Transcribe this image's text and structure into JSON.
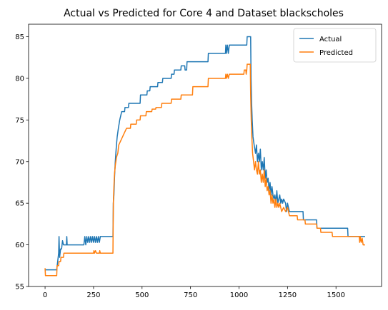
{
  "chart_data": {
    "type": "line",
    "title": "Actual vs Predicted for Core 4 and Dataset blackscholes",
    "xlabel": "",
    "ylabel": "",
    "xlim": [
      -85,
      1735
    ],
    "ylim": [
      55.0,
      86.5
    ],
    "xticks": [
      0,
      250,
      500,
      750,
      1000,
      1250,
      1500
    ],
    "yticks": [
      55,
      60,
      65,
      70,
      75,
      80,
      85
    ],
    "grid": false,
    "legend": "top-right",
    "series": [
      {
        "name": "Actual",
        "color": "#1f77b4",
        "points": [
          [
            0,
            57
          ],
          [
            60,
            57
          ],
          [
            65,
            58
          ],
          [
            70,
            59
          ],
          [
            72,
            61
          ],
          [
            75,
            58.5
          ],
          [
            80,
            59.5
          ],
          [
            85,
            59.5
          ],
          [
            90,
            60.5
          ],
          [
            95,
            60
          ],
          [
            110,
            60
          ],
          [
            112,
            61
          ],
          [
            114,
            60
          ],
          [
            200,
            60
          ],
          [
            205,
            61
          ],
          [
            210,
            60
          ],
          [
            215,
            61
          ],
          [
            220,
            60.3
          ],
          [
            225,
            61
          ],
          [
            230,
            60.3
          ],
          [
            235,
            61
          ],
          [
            240,
            60.3
          ],
          [
            245,
            61
          ],
          [
            250,
            60.3
          ],
          [
            255,
            61
          ],
          [
            260,
            60.3
          ],
          [
            265,
            61
          ],
          [
            270,
            60.3
          ],
          [
            275,
            61
          ],
          [
            280,
            60.3
          ],
          [
            285,
            61
          ],
          [
            290,
            61
          ],
          [
            350,
            61
          ],
          [
            352,
            65
          ],
          [
            355,
            66
          ],
          [
            358,
            68
          ],
          [
            362,
            70
          ],
          [
            365,
            71
          ],
          [
            368,
            72
          ],
          [
            372,
            73
          ],
          [
            378,
            74
          ],
          [
            385,
            75
          ],
          [
            395,
            76
          ],
          [
            410,
            76
          ],
          [
            412,
            76.5
          ],
          [
            430,
            76.5
          ],
          [
            432,
            77
          ],
          [
            460,
            77
          ],
          [
            462,
            77
          ],
          [
            490,
            77
          ],
          [
            492,
            78
          ],
          [
            525,
            78
          ],
          [
            527,
            78.5
          ],
          [
            540,
            78.5
          ],
          [
            542,
            79
          ],
          [
            580,
            79
          ],
          [
            582,
            79.5
          ],
          [
            605,
            79.5
          ],
          [
            607,
            80
          ],
          [
            650,
            80
          ],
          [
            652,
            80.5
          ],
          [
            665,
            80.5
          ],
          [
            667,
            81
          ],
          [
            700,
            81
          ],
          [
            702,
            81.5
          ],
          [
            720,
            81.5
          ],
          [
            722,
            81
          ],
          [
            730,
            81
          ],
          [
            732,
            82
          ],
          [
            760,
            82
          ],
          [
            762,
            82
          ],
          [
            840,
            82
          ],
          [
            842,
            83
          ],
          [
            930,
            83
          ],
          [
            932,
            84
          ],
          [
            935,
            83
          ],
          [
            940,
            84
          ],
          [
            945,
            83
          ],
          [
            950,
            84
          ],
          [
            952,
            84
          ],
          [
            1040,
            84
          ],
          [
            1042,
            85
          ],
          [
            1060,
            85
          ],
          [
            1062,
            80
          ],
          [
            1065,
            77
          ],
          [
            1068,
            75
          ],
          [
            1072,
            73
          ],
          [
            1078,
            72
          ],
          [
            1085,
            71
          ],
          [
            1090,
            72
          ],
          [
            1095,
            70
          ],
          [
            1100,
            71
          ],
          [
            1105,
            70
          ],
          [
            1110,
            71.5
          ],
          [
            1115,
            69
          ],
          [
            1120,
            70
          ],
          [
            1125,
            69
          ],
          [
            1130,
            70.5
          ],
          [
            1135,
            68
          ],
          [
            1140,
            69
          ],
          [
            1145,
            67.5
          ],
          [
            1150,
            68
          ],
          [
            1155,
            66.5
          ],
          [
            1160,
            67.5
          ],
          [
            1165,
            66
          ],
          [
            1170,
            67
          ],
          [
            1175,
            66
          ],
          [
            1180,
            65.5
          ],
          [
            1185,
            66
          ],
          [
            1190,
            65
          ],
          [
            1195,
            66.5
          ],
          [
            1200,
            65
          ],
          [
            1205,
            65.5
          ],
          [
            1210,
            66
          ],
          [
            1215,
            65
          ],
          [
            1220,
            65.5
          ],
          [
            1225,
            65
          ],
          [
            1230,
            65.5
          ],
          [
            1240,
            65
          ],
          [
            1245,
            64
          ],
          [
            1250,
            65
          ],
          [
            1260,
            64
          ],
          [
            1300,
            64
          ],
          [
            1330,
            64
          ],
          [
            1332,
            63
          ],
          [
            1400,
            63
          ],
          [
            1402,
            62
          ],
          [
            1560,
            62
          ],
          [
            1562,
            61
          ],
          [
            1650,
            61
          ]
        ]
      },
      {
        "name": "Predicted",
        "color": "#ff7f0e",
        "points": [
          [
            0,
            57.2
          ],
          [
            2,
            56.3
          ],
          [
            60,
            56.3
          ],
          [
            62,
            57.5
          ],
          [
            70,
            57.5
          ],
          [
            72,
            58
          ],
          [
            80,
            58
          ],
          [
            82,
            58.5
          ],
          [
            95,
            58.5
          ],
          [
            97,
            59
          ],
          [
            250,
            59
          ],
          [
            252,
            59.3
          ],
          [
            255,
            59
          ],
          [
            260,
            59.3
          ],
          [
            265,
            59
          ],
          [
            280,
            59
          ],
          [
            282,
            59.3
          ],
          [
            285,
            59
          ],
          [
            290,
            59
          ],
          [
            350,
            59
          ],
          [
            352,
            65
          ],
          [
            355,
            67
          ],
          [
            358,
            68.5
          ],
          [
            362,
            69.5
          ],
          [
            368,
            70.5
          ],
          [
            375,
            71
          ],
          [
            380,
            72
          ],
          [
            390,
            72.5
          ],
          [
            400,
            73
          ],
          [
            410,
            73.5
          ],
          [
            420,
            74
          ],
          [
            440,
            74
          ],
          [
            442,
            74.5
          ],
          [
            470,
            74.5
          ],
          [
            472,
            75
          ],
          [
            490,
            75
          ],
          [
            492,
            75.5
          ],
          [
            520,
            75.5
          ],
          [
            522,
            76
          ],
          [
            550,
            76
          ],
          [
            552,
            76.3
          ],
          [
            570,
            76.3
          ],
          [
            572,
            76.5
          ],
          [
            600,
            76.5
          ],
          [
            602,
            77
          ],
          [
            650,
            77
          ],
          [
            652,
            77.5
          ],
          [
            700,
            77.5
          ],
          [
            702,
            78
          ],
          [
            760,
            78
          ],
          [
            762,
            79
          ],
          [
            840,
            79
          ],
          [
            842,
            80
          ],
          [
            930,
            80
          ],
          [
            932,
            80.5
          ],
          [
            935,
            80
          ],
          [
            940,
            80.5
          ],
          [
            945,
            80
          ],
          [
            950,
            80.5
          ],
          [
            1025,
            80.5
          ],
          [
            1027,
            81
          ],
          [
            1035,
            81
          ],
          [
            1037,
            80.5
          ],
          [
            1040,
            81
          ],
          [
            1042,
            81.7
          ],
          [
            1058,
            81.7
          ],
          [
            1060,
            78
          ],
          [
            1063,
            75
          ],
          [
            1066,
            73
          ],
          [
            1070,
            71
          ],
          [
            1075,
            70
          ],
          [
            1080,
            69
          ],
          [
            1085,
            70
          ],
          [
            1090,
            69
          ],
          [
            1095,
            68.5
          ],
          [
            1100,
            70
          ],
          [
            1105,
            68.5
          ],
          [
            1110,
            69
          ],
          [
            1115,
            67.5
          ],
          [
            1120,
            68.5
          ],
          [
            1125,
            67.5
          ],
          [
            1130,
            69
          ],
          [
            1135,
            67
          ],
          [
            1140,
            68
          ],
          [
            1145,
            66.5
          ],
          [
            1150,
            67
          ],
          [
            1155,
            66
          ],
          [
            1160,
            66.5
          ],
          [
            1165,
            65
          ],
          [
            1170,
            66
          ],
          [
            1175,
            65
          ],
          [
            1180,
            65.5
          ],
          [
            1185,
            64.5
          ],
          [
            1190,
            65.5
          ],
          [
            1195,
            64.5
          ],
          [
            1200,
            65
          ],
          [
            1205,
            64.5
          ],
          [
            1210,
            65
          ],
          [
            1220,
            64
          ],
          [
            1230,
            64.5
          ],
          [
            1240,
            64
          ],
          [
            1250,
            64.5
          ],
          [
            1260,
            63.5
          ],
          [
            1300,
            63.5
          ],
          [
            1302,
            63
          ],
          [
            1340,
            63
          ],
          [
            1342,
            62.5
          ],
          [
            1400,
            62.5
          ],
          [
            1402,
            62
          ],
          [
            1420,
            62
          ],
          [
            1422,
            61.5
          ],
          [
            1480,
            61.5
          ],
          [
            1482,
            61
          ],
          [
            1620,
            61
          ],
          [
            1622,
            60.3
          ],
          [
            1625,
            61
          ],
          [
            1630,
            60.3
          ],
          [
            1635,
            60.8
          ],
          [
            1640,
            60
          ],
          [
            1650,
            60
          ]
        ]
      }
    ]
  }
}
